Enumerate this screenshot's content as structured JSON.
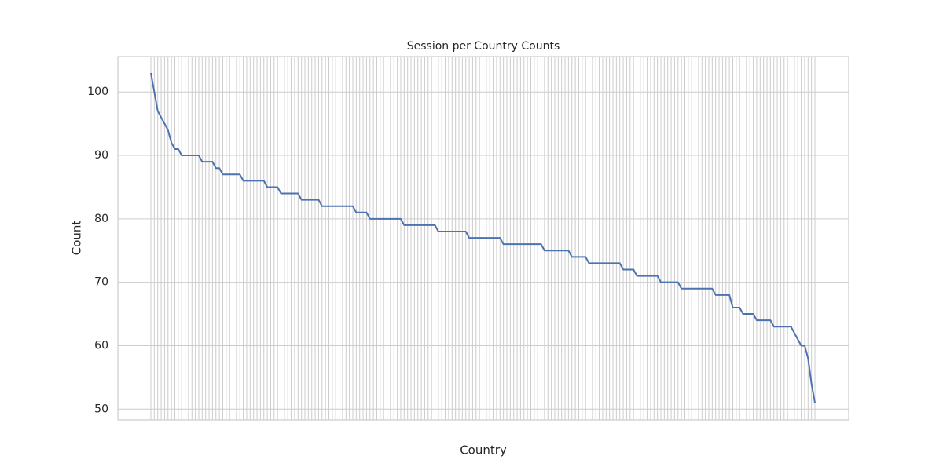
{
  "chart_data": {
    "type": "line",
    "title": "Session per Country Counts",
    "x_label": "Country",
    "y_label": "Count",
    "categories": [
      null,
      null,
      null,
      null,
      null,
      null,
      null,
      null,
      null,
      null,
      null,
      null,
      null,
      null,
      null,
      null,
      null,
      null,
      null,
      null,
      null,
      null,
      null,
      null,
      null,
      null,
      null,
      null,
      null,
      null,
      null,
      null,
      null,
      null,
      null,
      null,
      null,
      null,
      null,
      null,
      null,
      null,
      null,
      null,
      null,
      null,
      null,
      null,
      null,
      null,
      null,
      null,
      null,
      null,
      null,
      null,
      null,
      null,
      null,
      null,
      null,
      null,
      null,
      null,
      null,
      null,
      null,
      null,
      null,
      null,
      null,
      null,
      null,
      null,
      null,
      null,
      null,
      null,
      null,
      null,
      null,
      null,
      null,
      null,
      null,
      null,
      null,
      null,
      null,
      null,
      null,
      null,
      null,
      null,
      null,
      null,
      null,
      null,
      null,
      null,
      null,
      null,
      null,
      null,
      null,
      null,
      null,
      null,
      null,
      null,
      null,
      null,
      null,
      null,
      null,
      null,
      null,
      null,
      null,
      null,
      null,
      null,
      null,
      null,
      null,
      null,
      null,
      null,
      null,
      null,
      null,
      null,
      null,
      null,
      null,
      null,
      null,
      null,
      null,
      null,
      null,
      null,
      null,
      null,
      null,
      null,
      null,
      null,
      null,
      null,
      null,
      null,
      null,
      null,
      null,
      null,
      null,
      null,
      null,
      null,
      null,
      null,
      null,
      null,
      null,
      null,
      null,
      null,
      null,
      null,
      null,
      null,
      null,
      null,
      null,
      null,
      null,
      null,
      null,
      null,
      null,
      null,
      null,
      null,
      null,
      null,
      null,
      null,
      null,
      null,
      null,
      null,
      null,
      null,
      null
    ],
    "series": [
      {
        "name": "Count",
        "color": "#4c72b0",
        "values": [
          103,
          100,
          97,
          96,
          95,
          94,
          92,
          91,
          91,
          90,
          90,
          90,
          90,
          90,
          90,
          89,
          89,
          89,
          89,
          88,
          88,
          87,
          87,
          87,
          87,
          87,
          87,
          86,
          86,
          86,
          86,
          86,
          86,
          86,
          85,
          85,
          85,
          85,
          84,
          84,
          84,
          84,
          84,
          84,
          83,
          83,
          83,
          83,
          83,
          83,
          82,
          82,
          82,
          82,
          82,
          82,
          82,
          82,
          82,
          82,
          81,
          81,
          81,
          81,
          80,
          80,
          80,
          80,
          80,
          80,
          80,
          80,
          80,
          80,
          79,
          79,
          79,
          79,
          79,
          79,
          79,
          79,
          79,
          79,
          78,
          78,
          78,
          78,
          78,
          78,
          78,
          78,
          78,
          77,
          77,
          77,
          77,
          77,
          77,
          77,
          77,
          77,
          77,
          76,
          76,
          76,
          76,
          76,
          76,
          76,
          76,
          76,
          76,
          76,
          76,
          75,
          75,
          75,
          75,
          75,
          75,
          75,
          75,
          74,
          74,
          74,
          74,
          74,
          73,
          73,
          73,
          73,
          73,
          73,
          73,
          73,
          73,
          73,
          72,
          72,
          72,
          72,
          71,
          71,
          71,
          71,
          71,
          71,
          71,
          70,
          70,
          70,
          70,
          70,
          70,
          69,
          69,
          69,
          69,
          69,
          69,
          69,
          69,
          69,
          69,
          68,
          68,
          68,
          68,
          68,
          66,
          66,
          66,
          65,
          65,
          65,
          65,
          64,
          64,
          64,
          64,
          64,
          63,
          63,
          63,
          63,
          63,
          63,
          62,
          61,
          60,
          60,
          58,
          54,
          51
        ]
      }
    ],
    "ylim": [
      48.3,
      105.6
    ],
    "yticks": [
      50,
      60,
      70,
      80,
      90,
      100
    ],
    "grid": true
  }
}
